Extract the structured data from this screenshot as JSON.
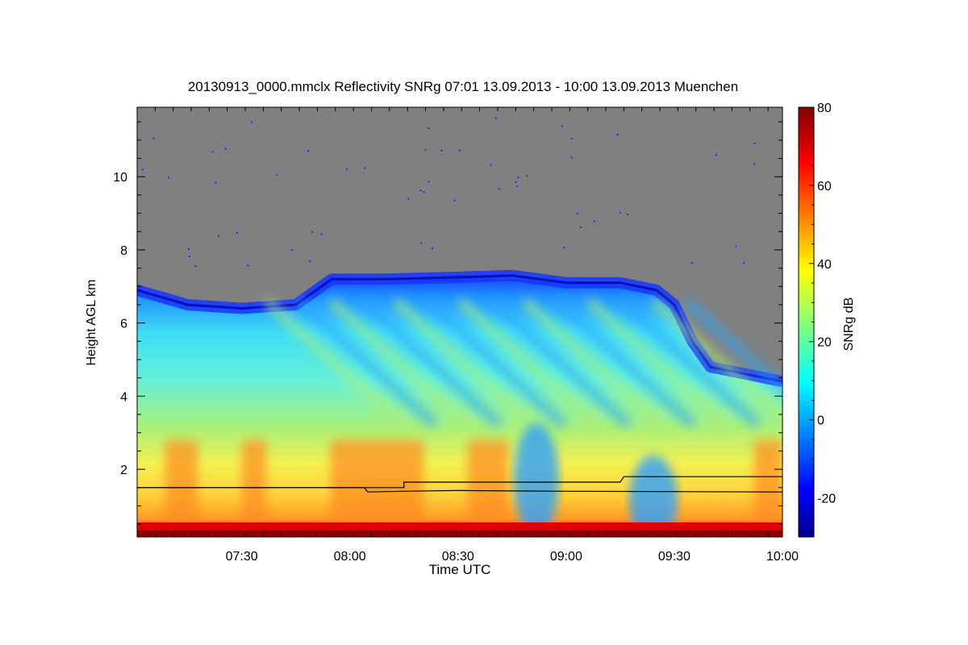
{
  "chart_data": {
    "type": "heatmap",
    "title": "20130913_0000.mmclx Reflectivity SNRg   07:01 13.09.2013 - 10:00 13.09.2013 Muenchen",
    "xlabel": "Time UTC",
    "ylabel": "Height AGL km",
    "x_ticks": [
      "07:30",
      "08:00",
      "08:30",
      "09:00",
      "09:30",
      "10:00"
    ],
    "y_ticks": [
      "2",
      "4",
      "6",
      "8",
      "10"
    ],
    "xlim": [
      "07:01",
      "10:00"
    ],
    "ylim": [
      0.15,
      11.9
    ],
    "colorbar": {
      "label": "SNRg dB",
      "ticks": [
        "-20",
        "0",
        "20",
        "40",
        "60",
        "80"
      ],
      "range": [
        -30,
        80
      ],
      "colormap": "jet"
    },
    "background_color": "#808080",
    "cloud_top_km": [
      {
        "time": "07:01",
        "top": 6.9
      },
      {
        "time": "07:15",
        "top": 6.5
      },
      {
        "time": "07:30",
        "top": 6.4
      },
      {
        "time": "07:45",
        "top": 6.5
      },
      {
        "time": "07:55",
        "top": 7.2
      },
      {
        "time": "08:10",
        "top": 7.2
      },
      {
        "time": "08:30",
        "top": 7.25
      },
      {
        "time": "08:45",
        "top": 7.3
      },
      {
        "time": "09:00",
        "top": 7.1
      },
      {
        "time": "09:15",
        "top": 7.1
      },
      {
        "time": "09:25",
        "top": 6.9
      },
      {
        "time": "09:30",
        "top": 6.5
      },
      {
        "time": "09:35",
        "top": 5.5
      },
      {
        "time": "09:40",
        "top": 4.8
      },
      {
        "time": "09:50",
        "top": 4.6
      },
      {
        "time": "10:00",
        "top": 4.4
      }
    ],
    "lines": [
      {
        "points": [
          {
            "time": "07:01",
            "h": 1.5
          },
          {
            "time": "08:15",
            "h": 1.5
          },
          {
            "time": "08:15",
            "h": 1.65
          },
          {
            "time": "09:15",
            "h": 1.65
          },
          {
            "time": "09:16",
            "h": 1.8
          },
          {
            "time": "10:00",
            "h": 1.8
          }
        ]
      },
      {
        "points": [
          {
            "time": "07:01",
            "h": 1.5
          },
          {
            "time": "08:04",
            "h": 1.5
          },
          {
            "time": "08:05",
            "h": 1.38
          },
          {
            "time": "08:15",
            "h": 1.4
          },
          {
            "time": "08:30",
            "h": 1.42
          },
          {
            "time": "09:00",
            "h": 1.4
          },
          {
            "time": "10:00",
            "h": 1.38
          }
        ]
      }
    ]
  }
}
